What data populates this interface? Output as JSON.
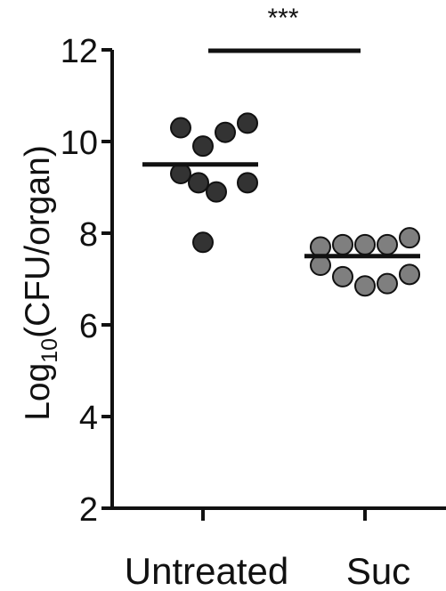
{
  "chart_data": {
    "type": "scatter",
    "ylabel": "Log10(CFU/organ)",
    "ylabel_base": "Log",
    "ylabel_sub": "10",
    "ylabel_rest": "(CFU/organ)",
    "ylim": [
      2,
      12
    ],
    "yticks": [
      2,
      4,
      6,
      8,
      10,
      12
    ],
    "categories": [
      "Untreated",
      "Suc"
    ],
    "significance": "***",
    "series": [
      {
        "category": "Untreated",
        "color": "#333333",
        "mean": 9.5,
        "points": [
          {
            "x": -0.5,
            "y": 10.3
          },
          {
            "x": 0.0,
            "y": 9.9
          },
          {
            "x": 0.5,
            "y": 10.2
          },
          {
            "x": 1.0,
            "y": 10.4
          },
          {
            "x": -0.5,
            "y": 9.3
          },
          {
            "x": -0.1,
            "y": 9.1
          },
          {
            "x": 0.3,
            "y": 8.9
          },
          {
            "x": 1.0,
            "y": 9.1
          },
          {
            "x": 0.0,
            "y": 7.8
          }
        ]
      },
      {
        "category": "Suc",
        "color": "#7f7f7f",
        "mean": 7.5,
        "points": [
          {
            "x": -1.0,
            "y": 7.7
          },
          {
            "x": -0.5,
            "y": 7.75
          },
          {
            "x": 0.0,
            "y": 7.75
          },
          {
            "x": 0.5,
            "y": 7.75
          },
          {
            "x": 1.0,
            "y": 7.9
          },
          {
            "x": -1.0,
            "y": 7.3
          },
          {
            "x": -0.5,
            "y": 7.05
          },
          {
            "x": 0.0,
            "y": 6.85
          },
          {
            "x": 0.5,
            "y": 6.9
          },
          {
            "x": 1.0,
            "y": 7.1
          }
        ]
      }
    ]
  }
}
